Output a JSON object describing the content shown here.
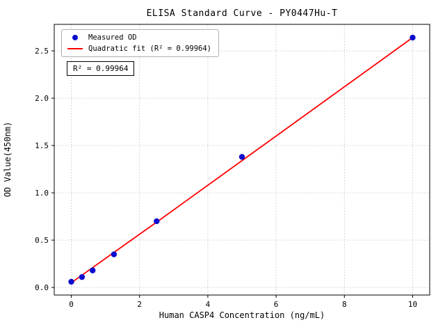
{
  "chart_data": {
    "type": "scatter",
    "title": "ELISA Standard Curve - PY0447Hu-T",
    "xlabel": "Human CASP4 Concentration (ng/mL)",
    "ylabel": "OD Value(450nm)",
    "xlim": [
      -0.5,
      10.5
    ],
    "ylim": [
      -0.08,
      2.78
    ],
    "xticks": [
      0,
      2,
      4,
      6,
      8,
      10
    ],
    "xticklabels": [
      "0",
      "2",
      "4",
      "6",
      "8",
      "10"
    ],
    "yticks": [
      0.0,
      0.5,
      1.0,
      1.5,
      2.0,
      2.5
    ],
    "yticklabels": [
      "0.0",
      "0.5",
      "1.0",
      "1.5",
      "2.0",
      "2.5"
    ],
    "grid": true,
    "grid_color": "#bbbbbb",
    "legend_position": "upper-left",
    "legend": [
      {
        "label": "Measured OD",
        "marker": "dot",
        "color": "#0b0bce"
      },
      {
        "label": "Quadratic fit (R² = 0.99964)",
        "marker": "line",
        "color": "#ff0000"
      }
    ],
    "annotation": "R² = 0.99964",
    "series": [
      {
        "name": "Quadratic fit",
        "type": "line",
        "color": "#ff0000",
        "x": [
          0,
          0.313,
          0.625,
          1.25,
          2.5,
          5,
          10
        ],
        "y": [
          0.05,
          0.13,
          0.21,
          0.37,
          0.69,
          1.34,
          2.64
        ]
      },
      {
        "name": "Measured OD",
        "type": "scatter",
        "color": "#0b0bce",
        "x": [
          0,
          0.313,
          0.625,
          1.25,
          2.5,
          5,
          10
        ],
        "y": [
          0.06,
          0.11,
          0.18,
          0.35,
          0.7,
          1.38,
          2.64
        ]
      }
    ]
  }
}
